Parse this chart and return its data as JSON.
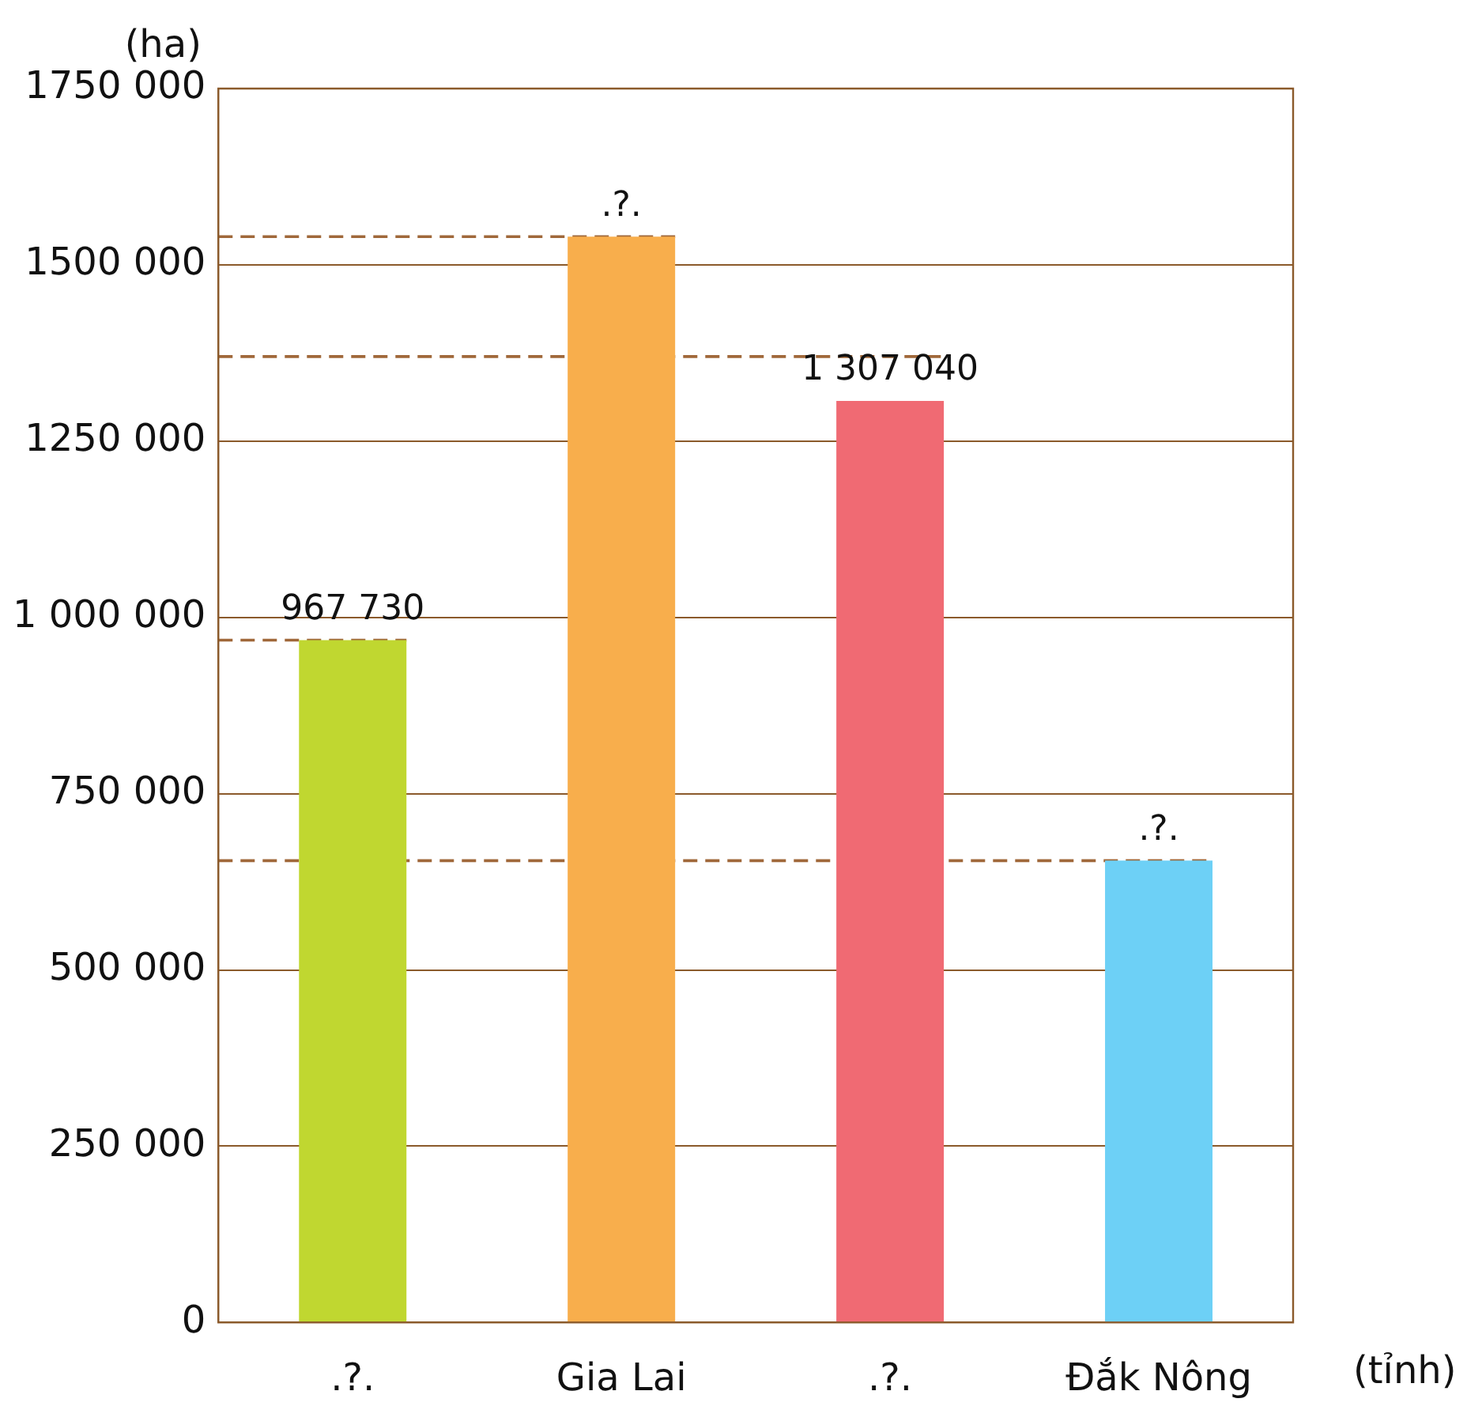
{
  "chart_data": {
    "type": "bar",
    "xlabel": "(tỉnh)",
    "ylabel": "(ha)",
    "categories": [
      ".?.",
      "Gia Lai",
      ".?.",
      "Đắk Nông"
    ],
    "values": [
      967730,
      1540000,
      1307040,
      655000
    ],
    "colors": [
      "#c0d730",
      "#f8ae4c",
      "#f06a73",
      "#6dd0f6"
    ],
    "value_labels": [
      "967 730",
      ".?.",
      "1 307 040",
      ".?."
    ],
    "ylim": [
      0,
      1750000
    ],
    "yticks": [
      {
        "value": 0,
        "label": "0"
      },
      {
        "value": 250000,
        "label": "250 000"
      },
      {
        "value": 500000,
        "label": "500 000"
      },
      {
        "value": 750000,
        "label": "750 000"
      },
      {
        "value": 1000000,
        "label": "1 000 000"
      },
      {
        "value": 1250000,
        "label": "1250 000"
      },
      {
        "value": 1500000,
        "label": "1500 000"
      },
      {
        "value": 1750000,
        "label": "1750 000"
      }
    ],
    "grid": "y",
    "ref_lines": [
      {
        "axis": "y",
        "value": 967730,
        "color": "#a0683a",
        "line_style": "dashed"
      },
      {
        "axis": "y",
        "value": 1540000,
        "color": "#a0683a",
        "line_style": "dashed"
      },
      {
        "axis": "y",
        "value": 1370000,
        "color": "#a0683a",
        "line_style": "dashed"
      },
      {
        "axis": "y",
        "value": 655000,
        "color": "#a0683a",
        "line_style": "dashed"
      }
    ]
  }
}
